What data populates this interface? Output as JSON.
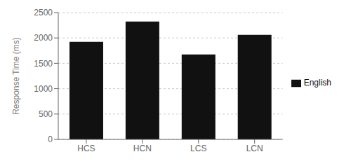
{
  "chart_data": {
    "type": "bar",
    "categories": [
      "HCS",
      "HCN",
      "LCS",
      "LCN"
    ],
    "series": [
      {
        "name": "English",
        "color": "#111111",
        "values": [
          1925,
          2325,
          1675,
          2060
        ]
      }
    ],
    "ylabel": "Response Time (ms)",
    "ylim": [
      0,
      2500
    ],
    "yticks": [
      0,
      500,
      1000,
      1500,
      2000,
      2500
    ],
    "grid": true,
    "legend": "right"
  }
}
